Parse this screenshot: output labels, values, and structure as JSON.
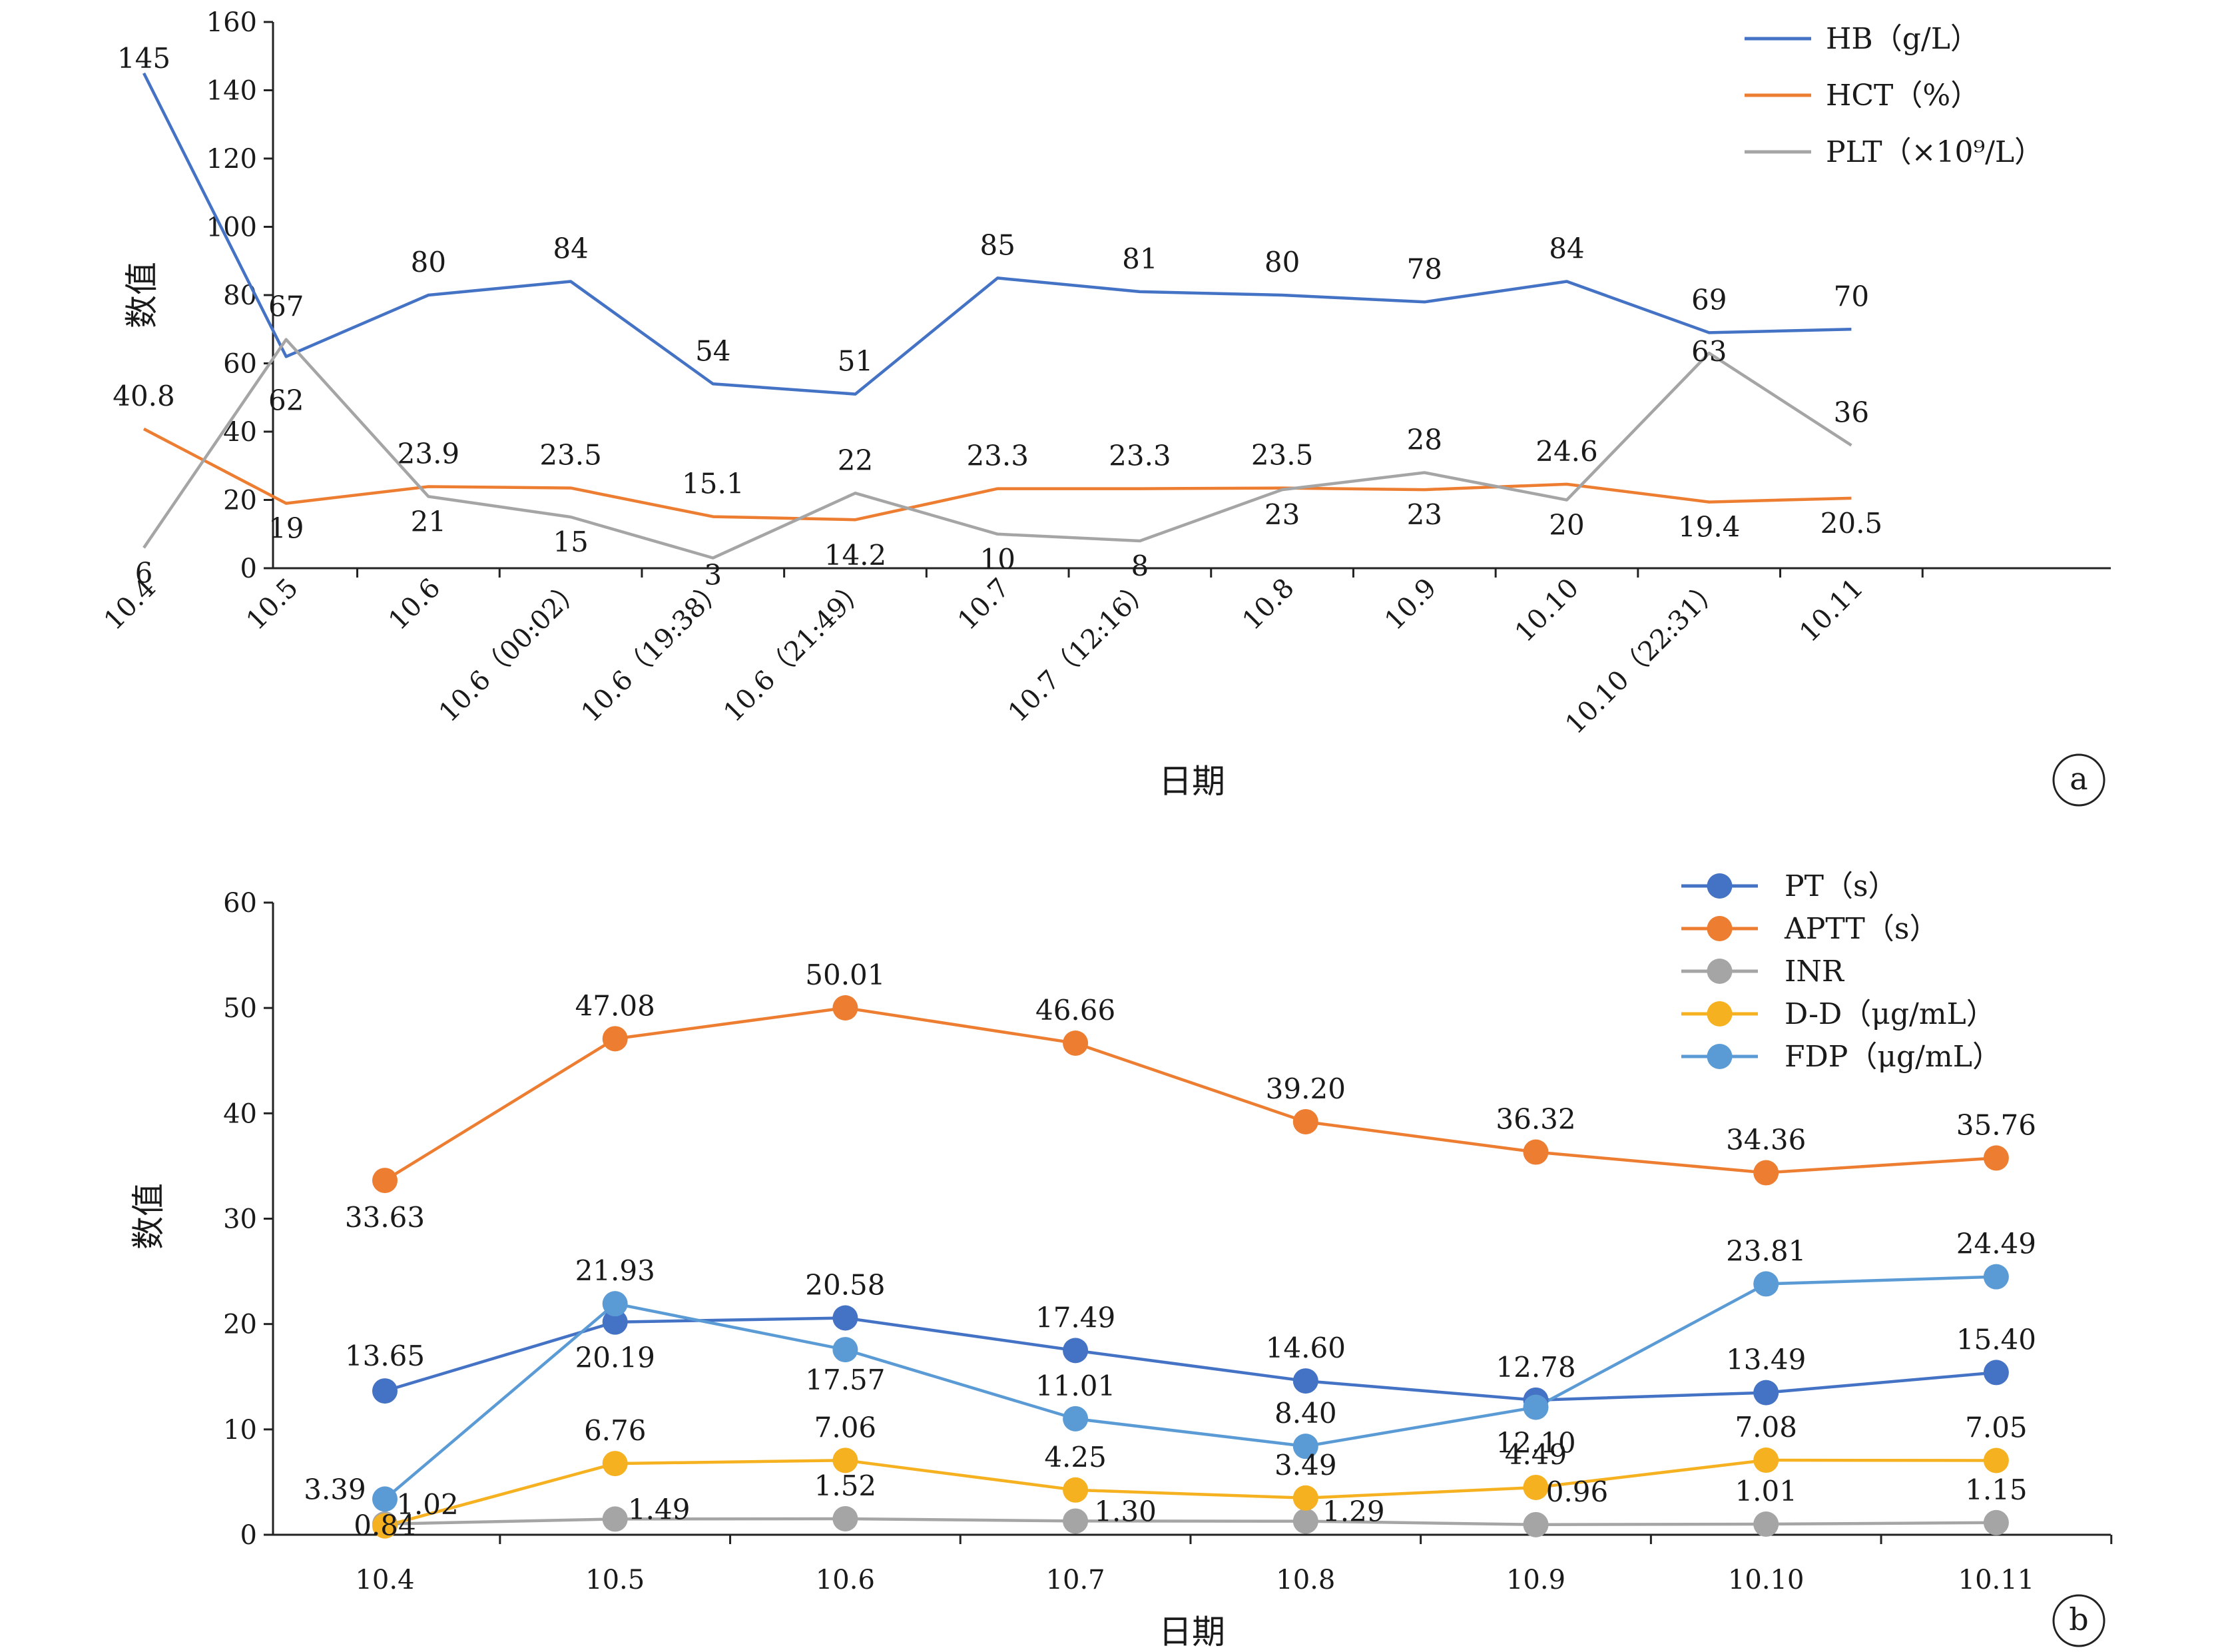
{
  "chart_data": [
    {
      "type": "line",
      "panel_label": "a",
      "xlabel": "日期",
      "ylabel": "数值",
      "ylim": [
        0,
        160
      ],
      "yticks": [
        0,
        20,
        40,
        60,
        80,
        100,
        120,
        140,
        160
      ],
      "categories": [
        "10.4",
        "10.5",
        "10.6",
        "10.6（00:02）",
        "10.6（19:38）",
        "10.6（21:49）",
        "10.7",
        "10.7（12:16）",
        "10.8",
        "10.9",
        "10.10",
        "10.10（22:31）",
        "10.11"
      ],
      "legend_position": "top-right",
      "grid": false,
      "series": [
        {
          "name": "HB（g/L）",
          "color": "#4472C4",
          "values": [
            145,
            62,
            80,
            84,
            54,
            51,
            85,
            81,
            80,
            78,
            84,
            69,
            70
          ],
          "labels": [
            "145",
            "62",
            "80",
            "84",
            "54",
            "51",
            "85",
            "81",
            "80",
            "78",
            "84",
            "69",
            "70"
          ]
        },
        {
          "name": "HCT（%）",
          "color": "#ED7D31",
          "values": [
            40.8,
            19,
            23.9,
            23.5,
            15.1,
            14.2,
            23.3,
            23.3,
            23.5,
            23,
            24.6,
            19.4,
            20.5
          ],
          "labels": [
            "40.8",
            "19",
            "23.9",
            "23.5",
            "15.1",
            "14.2",
            "23.3",
            "23.3",
            "23.5",
            "23",
            "24.6",
            "19.4",
            "20.5"
          ]
        },
        {
          "name": "PLT（×10⁹/L）",
          "color": "#A5A5A5",
          "values": [
            6,
            67,
            21,
            15,
            3,
            22,
            10,
            8,
            23,
            28,
            20,
            63,
            36
          ],
          "labels": [
            "6",
            "67",
            "21",
            "15",
            "3",
            "22",
            "10",
            "8",
            "23",
            "28",
            "20",
            "63",
            "36"
          ]
        }
      ]
    },
    {
      "type": "line",
      "panel_label": "b",
      "xlabel": "日期",
      "ylabel": "数值",
      "ylim": [
        0,
        60
      ],
      "yticks": [
        0,
        10,
        20,
        30,
        40,
        50,
        60
      ],
      "categories": [
        "10.4",
        "10.5",
        "10.6",
        "10.7",
        "10.8",
        "10.9",
        "10.10",
        "10.11"
      ],
      "legend_position": "top-right",
      "grid": false,
      "markers": true,
      "series": [
        {
          "name": "PT（s）",
          "color": "#4472C4",
          "values": [
            13.65,
            20.19,
            20.58,
            17.49,
            14.6,
            12.78,
            13.49,
            15.4
          ],
          "labels": [
            "13.65",
            "20.19",
            "20.58",
            "17.49",
            "14.60",
            "12.78",
            "13.49",
            "15.40"
          ]
        },
        {
          "name": "APTT（s）",
          "color": "#ED7D31",
          "values": [
            33.63,
            47.08,
            50.01,
            46.66,
            39.2,
            36.32,
            34.36,
            35.76
          ],
          "labels": [
            "33.63",
            "47.08",
            "50.01",
            "46.66",
            "39.20",
            "36.32",
            "34.36",
            "35.76"
          ]
        },
        {
          "name": "INR",
          "color": "#A5A5A5",
          "values": [
            1.02,
            1.49,
            1.52,
            1.3,
            1.29,
            0.96,
            1.01,
            1.15
          ],
          "labels": [
            "1.02",
            "1.49",
            "1.52",
            "1.30",
            "1.29",
            "0.96",
            "1.01",
            "1.15"
          ]
        },
        {
          "name": "D-D（μg/mL）",
          "color": "#F5B120",
          "values": [
            0.84,
            6.76,
            7.06,
            4.25,
            3.49,
            4.49,
            7.08,
            7.05
          ],
          "labels": [
            "0.84",
            "6.76",
            "7.06",
            "4.25",
            "3.49",
            "4.49",
            "7.08",
            "7.05"
          ]
        },
        {
          "name": "FDP（μg/mL）",
          "color": "#5B9BD5",
          "values": [
            3.39,
            21.93,
            17.57,
            11.01,
            8.4,
            12.1,
            23.81,
            24.49
          ],
          "labels": [
            "3.39",
            "21.93",
            "17.57",
            "11.01",
            "8.40",
            "12.10",
            "23.81",
            "24.49"
          ]
        }
      ]
    }
  ]
}
